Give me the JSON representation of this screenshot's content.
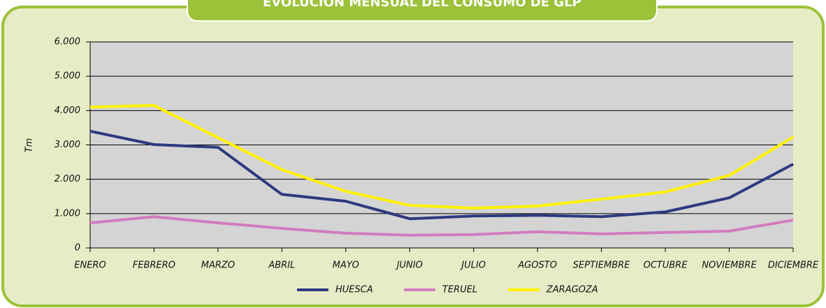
{
  "chart_data": {
    "type": "line",
    "title": "EVOLUCIÓN MENSUAL DEL CONSUMO DE GLP",
    "y_label": "Tm",
    "categories": [
      "ENERO",
      "FEBRERO",
      "MARZO",
      "ABRIL",
      "MAYO",
      "JUNIO",
      "JULIO",
      "AGOSTO",
      "SEPTIEMBRE",
      "OCTUBRE",
      "NOVIEMBRE",
      "DICIEMBRE"
    ],
    "series": [
      {
        "name": "HUESCA",
        "color": "#2e3a80",
        "values": [
          3400,
          3010,
          2930,
          1560,
          1360,
          850,
          930,
          950,
          910,
          1050,
          1460,
          2440
        ]
      },
      {
        "name": "TERUEL",
        "color": "#d27cbf",
        "values": [
          730,
          910,
          730,
          570,
          430,
          370,
          390,
          470,
          410,
          450,
          490,
          810
        ]
      },
      {
        "name": "ZARAGOZA",
        "color": "#fff200",
        "values": [
          4100,
          4150,
          3210,
          2280,
          1650,
          1240,
          1160,
          1220,
          1420,
          1630,
          2110,
          3230
        ]
      }
    ],
    "ylim": [
      0,
      6000
    ],
    "yticks": [
      0,
      {
        "value": 1000,
        "label": "1.000"
      },
      {
        "value": 2000,
        "label": "2.000"
      },
      {
        "value": 3000,
        "label": "3.000"
      },
      {
        "value": 4000,
        "label": "4.000"
      },
      {
        "value": 5000,
        "label": "5.000"
      },
      {
        "value": 6000,
        "label": "6.000"
      }
    ],
    "grid": true
  }
}
